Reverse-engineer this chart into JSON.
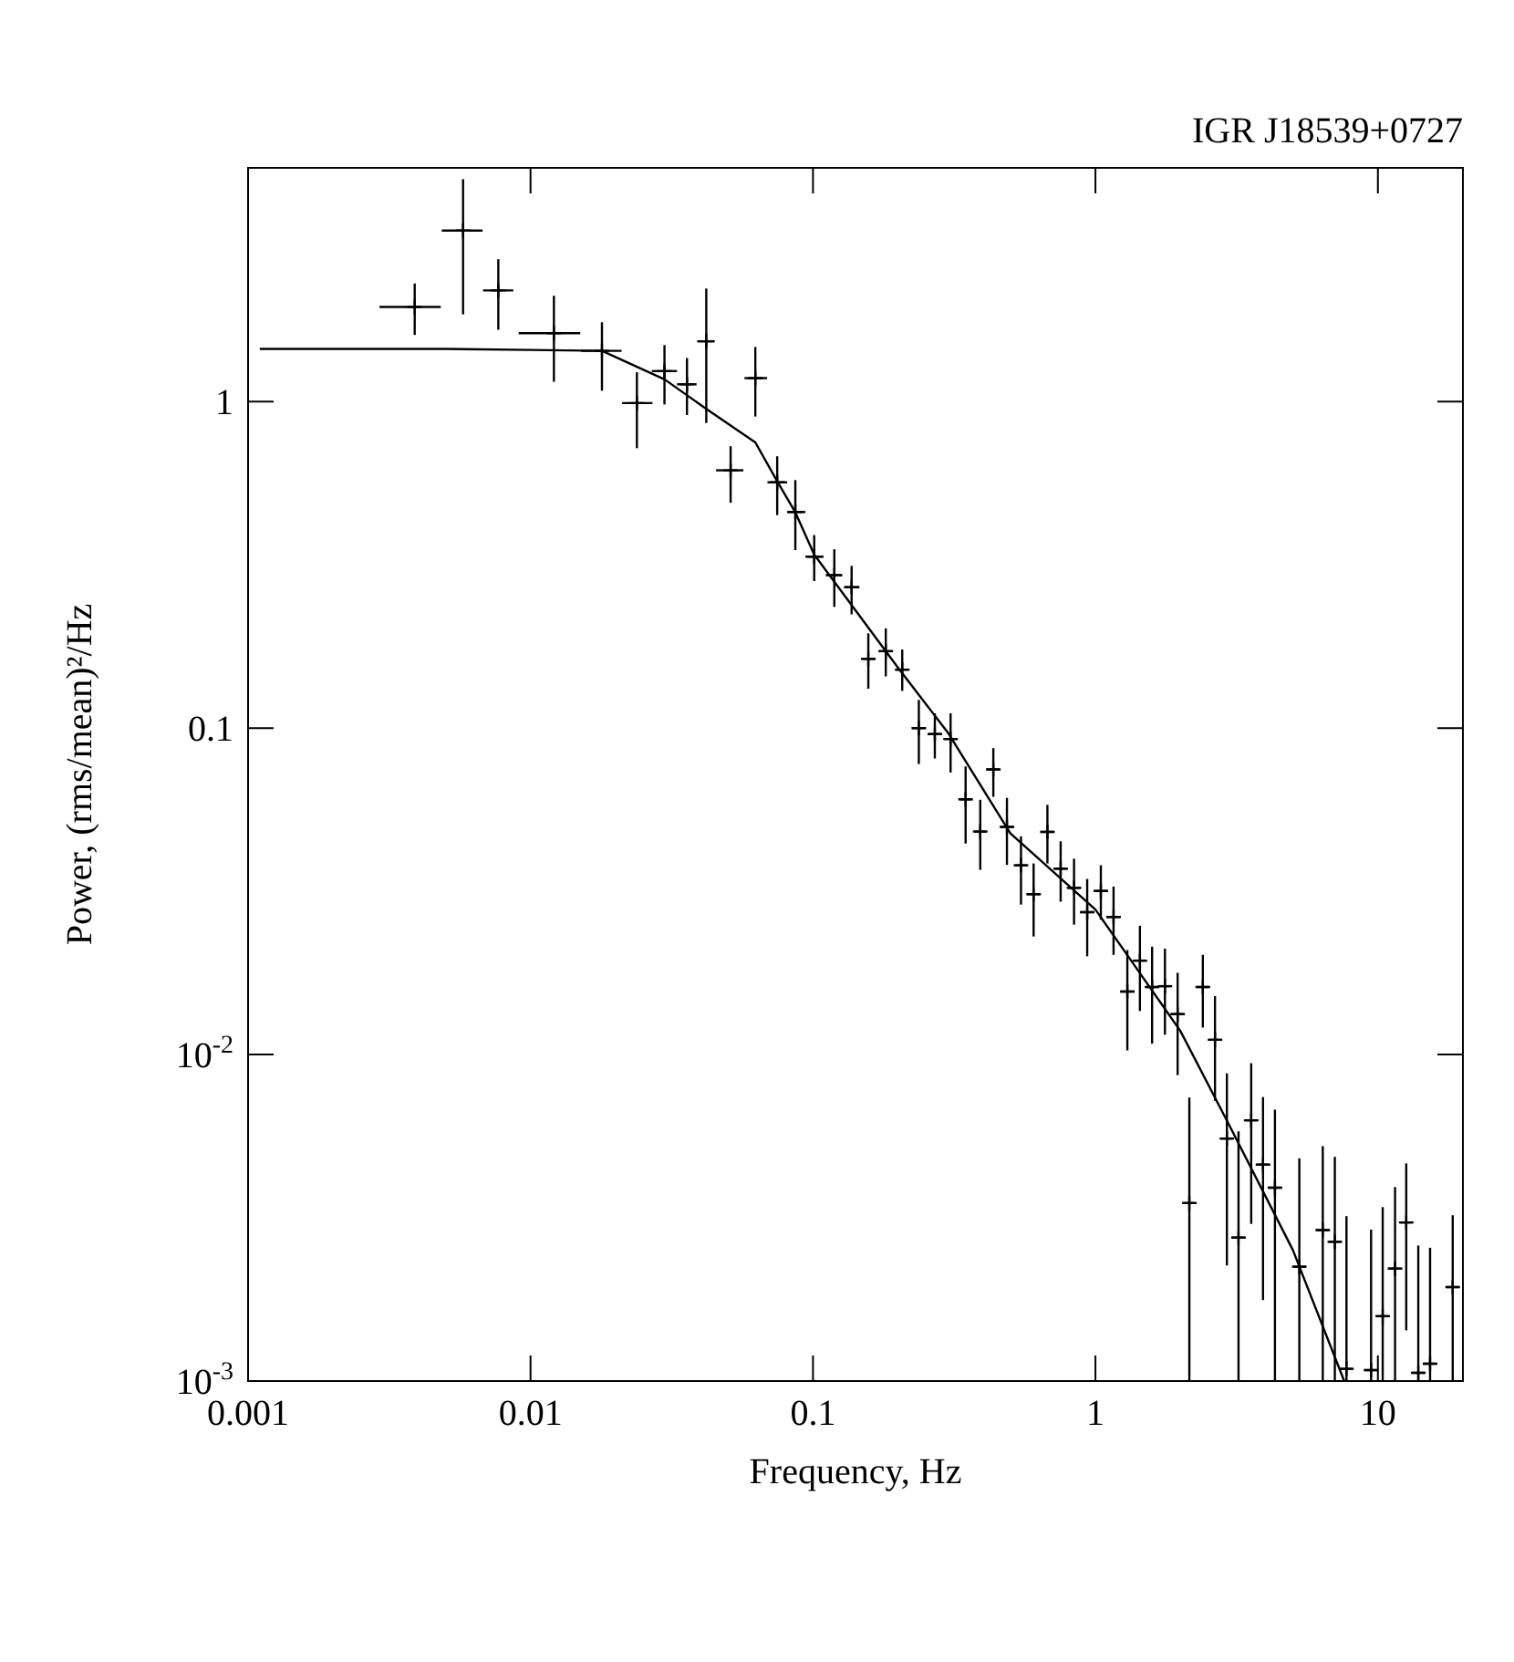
{
  "chart_data": {
    "type": "scatter",
    "title": "IGR J18539+0727",
    "xlabel": "Frequency, Hz",
    "ylabel": "Power, (rms/mean)²/Hz",
    "log": "xy",
    "xlim": [
      0.001,
      20
    ],
    "ylim": [
      0.001,
      5.2
    ],
    "xticks": [
      0.001,
      0.01,
      0.1,
      1,
      10
    ],
    "yticks": [
      {
        "value": 0.001,
        "label": "10$^{-3}$"
      },
      {
        "value": 0.01,
        "label": "10$^{-2}$"
      },
      0.1,
      1
    ],
    "series": [
      {
        "color": "#000000",
        "marker": "cross",
        "x": [
          0.00389,
          0.00577,
          0.00769,
          0.0121,
          0.0179,
          0.0238,
          0.0298,
          0.0358,
          0.0419,
          0.0511,
          0.0625,
          0.0747,
          0.0866,
          0.101,
          0.119,
          0.137,
          0.157,
          0.181,
          0.207,
          0.237,
          0.27,
          0.307,
          0.347,
          0.391,
          0.435,
          0.486,
          0.545,
          0.604,
          0.676,
          0.753,
          0.84,
          0.935,
          1.045,
          1.159,
          1.297,
          1.437,
          1.587,
          1.762,
          1.954,
          2.15,
          2.4,
          2.65,
          2.92,
          3.21,
          3.56,
          3.92,
          4.32,
          5.27,
          6.38,
          7.04,
          7.74,
          9.46,
          10.4,
          11.5,
          12.6,
          13.9,
          15.3,
          18.4
        ],
        "values": [
          1.95,
          3.34,
          2.19,
          1.62,
          1.43,
          0.99,
          1.24,
          1.13,
          1.53,
          0.616,
          1.18,
          0.566,
          0.459,
          0.335,
          0.294,
          0.27,
          0.163,
          0.172,
          0.151,
          0.1,
          0.0959,
          0.0926,
          0.0605,
          0.0482,
          0.0747,
          0.0498,
          0.038,
          0.031,
          0.0481,
          0.0371,
          0.0324,
          0.0273,
          0.0317,
          0.0264,
          0.0156,
          0.0194,
          0.0161,
          0.0162,
          0.0133,
          0.00351,
          0.0161,
          0.0111,
          0.00553,
          0.00275,
          0.00629,
          0.0046,
          0.00391,
          0.00224,
          0.0029,
          0.00267,
          0.00109,
          0.00108,
          0.00158,
          0.00221,
          0.00306,
          0.00106,
          0.00113,
          0.00194
        ],
        "errors": [
          [
            1.6,
            2.3
          ],
          [
            1.85,
            4.8
          ],
          [
            1.66,
            2.73
          ],
          [
            1.15,
            2.11
          ],
          [
            1.08,
            1.75
          ],
          [
            0.72,
            1.23
          ],
          [
            0.98,
            1.49
          ],
          [
            0.91,
            1.36
          ],
          [
            0.86,
            2.22
          ],
          [
            0.49,
            0.73
          ],
          [
            0.9,
            1.47
          ],
          [
            0.449,
            0.68
          ],
          [
            0.351,
            0.575
          ],
          [
            0.282,
            0.39
          ],
          [
            0.235,
            0.353
          ],
          [
            0.223,
            0.314
          ],
          [
            0.132,
            0.195
          ],
          [
            0.144,
            0.202
          ],
          [
            0.13,
            0.174
          ],
          [
            0.0776,
            0.122
          ],
          [
            0.0807,
            0.111
          ],
          [
            0.0731,
            0.111
          ],
          [
            0.0443,
            0.0763
          ],
          [
            0.0368,
            0.0603
          ],
          [
            0.0616,
            0.0868
          ],
          [
            0.0381,
            0.0611
          ],
          [
            0.0288,
            0.0466
          ],
          [
            0.023,
            0.0385
          ],
          [
            0.0385,
            0.0582
          ],
          [
            0.0294,
            0.045
          ],
          [
            0.025,
            0.0398
          ],
          [
            0.02,
            0.0345
          ],
          [
            0.0259,
            0.038
          ],
          [
            0.0202,
            0.0327
          ],
          [
            0.0103,
            0.0209
          ],
          [
            0.0136,
            0.0248
          ],
          [
            0.0108,
            0.0214
          ],
          [
            0.0115,
            0.0211
          ],
          [
            0.00865,
            0.0178
          ],
          [
            0.001,
            0.00738
          ],
          [
            0.0121,
            0.0202
          ],
          [
            0.00722,
            0.0151
          ],
          [
            0.00226,
            0.00876
          ],
          [
            0.001,
            0.00582
          ],
          [
            0.00303,
            0.00941
          ],
          [
            0.00177,
            0.00741
          ],
          [
            0.001,
            0.00678
          ],
          [
            0.001,
            0.00481
          ],
          [
            0.001,
            0.00524
          ],
          [
            0.001,
            0.00486
          ],
          [
            0.001,
            0.0032
          ],
          [
            0.001,
            0.00291
          ],
          [
            0.001,
            0.00341
          ],
          [
            0.001,
            0.00393
          ],
          [
            0.00143,
            0.00464
          ],
          [
            0.001,
            0.0026
          ],
          [
            0.001,
            0.00256
          ],
          [
            0.001,
            0.00322
          ]
        ],
        "xerrors": [
          [
            0.00292,
            0.00481
          ],
          [
            0.00485,
            0.00676
          ],
          [
            0.00679,
            0.00869
          ],
          [
            0.00908,
            0.015
          ],
          [
            0.0151,
            0.021
          ],
          [
            0.0211,
            0.027
          ],
          [
            0.0269,
            0.033
          ],
          [
            0.033,
            0.0387
          ],
          [
            0.0389,
            0.0449
          ],
          [
            0.0454,
            0.0567
          ],
          [
            0.0572,
            0.0688
          ],
          [
            0.069,
            0.081
          ],
          [
            0.081,
            0.094
          ],
          [
            0.094,
            0.109
          ],
          [
            0.111,
            0.127
          ],
          [
            0.129,
            0.146
          ],
          [
            0.149,
            0.166
          ],
          [
            0.171,
            0.191
          ],
          [
            0.196,
            0.218
          ],
          [
            0.225,
            0.249
          ],
          [
            0.257,
            0.284
          ],
          [
            0.292,
            0.323
          ],
          [
            0.33,
            0.365
          ],
          [
            0.372,
            0.411
          ],
          [
            0.413,
            0.457
          ],
          [
            0.462,
            0.511
          ],
          [
            0.518,
            0.573
          ],
          [
            0.574,
            0.635
          ],
          [
            0.642,
            0.711
          ],
          [
            0.715,
            0.792
          ],
          [
            0.798,
            0.884
          ],
          [
            0.888,
            0.983
          ],
          [
            0.993,
            1.1
          ],
          [
            1.1,
            1.22
          ],
          [
            1.23,
            1.36
          ],
          [
            1.37,
            1.51
          ],
          [
            1.51,
            1.67
          ],
          [
            1.67,
            1.85
          ],
          [
            1.86,
            2.05
          ],
          [
            2.04,
            2.26
          ],
          [
            2.28,
            2.52
          ],
          [
            2.52,
            2.79
          ],
          [
            2.77,
            3.07
          ],
          [
            3.05,
            3.38
          ],
          [
            3.38,
            3.74
          ],
          [
            3.72,
            4.12
          ],
          [
            4.1,
            4.54
          ],
          [
            5.01,
            5.54
          ],
          [
            6.06,
            6.7
          ],
          [
            6.69,
            7.4
          ],
          [
            7.35,
            8.13
          ],
          [
            8.99,
            9.93
          ],
          [
            9.88,
            10.9
          ],
          [
            10.9,
            12.1
          ],
          [
            12.0,
            13.2
          ],
          [
            13.2,
            14.6
          ],
          [
            14.5,
            16.1
          ],
          [
            17.5,
            19.3
          ]
        ]
      },
      {
        "type": "line",
        "color": "#000000",
        "x": [
          0.0011,
          0.005,
          0.01,
          0.0179,
          0.0298,
          0.0419,
          0.0625,
          0.0747,
          0.0866,
          0.101,
          0.2,
          0.3,
          0.5,
          1,
          2,
          3,
          5,
          7.6
        ],
        "values": [
          1.45,
          1.45,
          1.44,
          1.43,
          1.17,
          0.95,
          0.75,
          0.57,
          0.458,
          0.34,
          0.153,
          0.097,
          0.0476,
          0.0278,
          0.0118,
          0.006,
          0.00252,
          0.001
        ]
      }
    ]
  }
}
